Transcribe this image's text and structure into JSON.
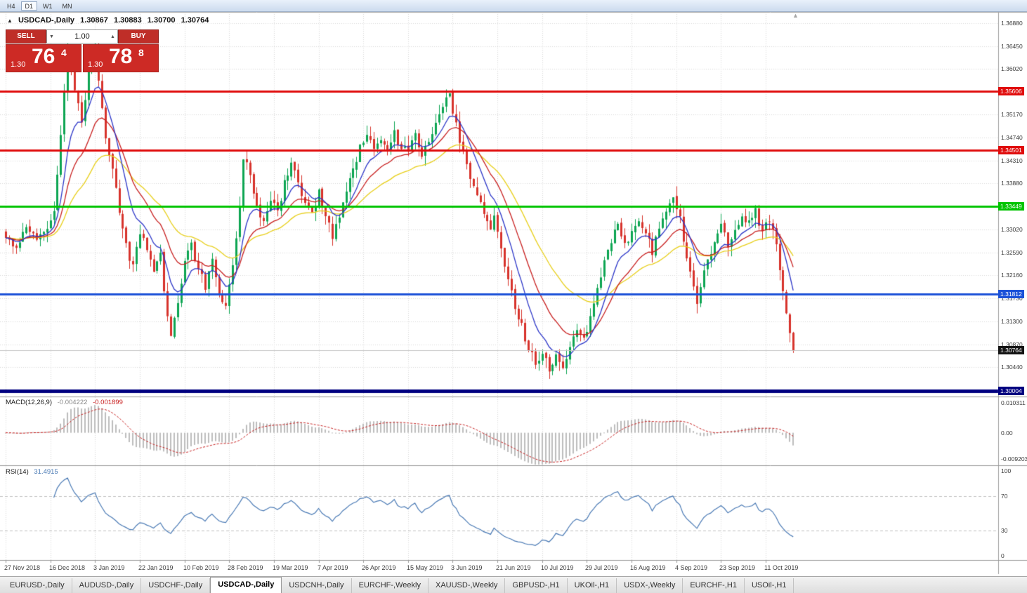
{
  "toolbar": {
    "timeframes": [
      {
        "label": "H4",
        "active": false
      },
      {
        "label": "D1",
        "active": true
      },
      {
        "label": "W1",
        "active": false
      },
      {
        "label": "MN",
        "active": false
      }
    ]
  },
  "symbol_header": {
    "arrow": "▲",
    "title": "USDCAD-,Daily",
    "open": "1.30867",
    "high": "1.30883",
    "low": "1.30700",
    "close": "1.30764"
  },
  "trade_panel": {
    "sell_label": "SELL",
    "buy_label": "BUY",
    "volume": "1.00",
    "volume_down_glyph": "▼",
    "volume_up_glyph": "▲",
    "sell_price": {
      "prefix": "1.30",
      "big": "76",
      "sup": "4"
    },
    "buy_price": {
      "prefix": "1.30",
      "big": "78",
      "sup": "8"
    },
    "panel_color": "#cd2a25"
  },
  "chart_markers": {
    "shift_glyph": "▲"
  },
  "price_axis": {
    "grid_labels": [
      {
        "text": "1.36880",
        "price": 1.3688
      },
      {
        "text": "1.36450",
        "price": 1.3645
      },
      {
        "text": "1.36020",
        "price": 1.3602
      },
      {
        "text": "1.35170",
        "price": 1.3517
      },
      {
        "text": "1.34740",
        "price": 1.3474
      },
      {
        "text": "1.34310",
        "price": 1.3431
      },
      {
        "text": "1.33880",
        "price": 1.3388
      },
      {
        "text": "1.33020",
        "price": 1.3302
      },
      {
        "text": "1.32590",
        "price": 1.3259
      },
      {
        "text": "1.32160",
        "price": 1.3216
      },
      {
        "text": "1.31730",
        "price": 1.3173
      },
      {
        "text": "1.31300",
        "price": 1.313
      },
      {
        "text": "1.30870",
        "price": 1.3087
      },
      {
        "text": "1.30440",
        "price": 1.3044
      }
    ],
    "grid_prices": [
      1.3688,
      1.3645,
      1.3602,
      1.3559,
      1.3517,
      1.3474,
      1.3431,
      1.3388,
      1.3345,
      1.3302,
      1.3259,
      1.3216,
      1.3173,
      1.313,
      1.3087,
      1.3044,
      1.3001
    ],
    "badges": [
      {
        "text": "1.35606",
        "price": 1.35606,
        "bg": "#e00c0c",
        "name": "resistance-line-badge"
      },
      {
        "text": "1.34501",
        "price": 1.34501,
        "bg": "#e00c0c",
        "name": "resistance-line-badge"
      },
      {
        "text": "1.33449",
        "price": 1.33449,
        "bg": "#00c400",
        "name": "support-line-badge"
      },
      {
        "text": "1.31812",
        "price": 1.31812,
        "bg": "#1b51d8",
        "name": "support-line-badge"
      },
      {
        "text": "1.30764",
        "price": 1.30764,
        "bg": "#141414",
        "name": "current-price-badge"
      },
      {
        "text": "1.30004",
        "price": 1.30004,
        "bg": "#000080",
        "name": "support-line-badge"
      }
    ]
  },
  "chart_data": {
    "type": "candlestick",
    "symbol": "USDCAD",
    "timeframe": "Daily",
    "price_range": {
      "min": 1.29895,
      "max": 1.3709
    },
    "candle_count": 230,
    "candles_per_tick": 13,
    "up_color": "#0da552",
    "down_color": "#d7332c",
    "price_anchors": [
      [
        0,
        1.329
      ],
      [
        3,
        1.3268
      ],
      [
        6,
        1.3302
      ],
      [
        9,
        1.328
      ],
      [
        12,
        1.3302
      ],
      [
        14,
        1.334
      ],
      [
        16,
        1.348
      ],
      [
        18,
        1.364
      ],
      [
        20,
        1.356
      ],
      [
        22,
        1.3505
      ],
      [
        24,
        1.359
      ],
      [
        26,
        1.365
      ],
      [
        27,
        1.3575
      ],
      [
        29,
        1.347
      ],
      [
        31,
        1.341
      ],
      [
        33,
        1.334
      ],
      [
        35,
        1.327
      ],
      [
        37,
        1.323
      ],
      [
        39,
        1.33
      ],
      [
        41,
        1.326
      ],
      [
        43,
        1.3225
      ],
      [
        45,
        1.3255
      ],
      [
        46,
        1.318
      ],
      [
        48,
        1.31
      ],
      [
        50,
        1.317
      ],
      [
        52,
        1.324
      ],
      [
        54,
        1.327
      ],
      [
        56,
        1.323
      ],
      [
        58,
        1.3195
      ],
      [
        60,
        1.324
      ],
      [
        62,
        1.3185
      ],
      [
        64,
        1.3155
      ],
      [
        66,
        1.324
      ],
      [
        68,
        1.334
      ],
      [
        69,
        1.344
      ],
      [
        71,
        1.34
      ],
      [
        73,
        1.3345
      ],
      [
        75,
        1.332
      ],
      [
        77,
        1.336
      ],
      [
        79,
        1.3335
      ],
      [
        81,
        1.339
      ],
      [
        83,
        1.342
      ],
      [
        85,
        1.339
      ],
      [
        87,
        1.335
      ],
      [
        89,
        1.333
      ],
      [
        91,
        1.337
      ],
      [
        93,
        1.333
      ],
      [
        95,
        1.3285
      ],
      [
        97,
        1.333
      ],
      [
        99,
        1.337
      ],
      [
        101,
        1.341
      ],
      [
        103,
        1.346
      ],
      [
        105,
        1.348
      ],
      [
        107,
        1.3445
      ],
      [
        109,
        1.347
      ],
      [
        111,
        1.345
      ],
      [
        113,
        1.348
      ],
      [
        115,
        1.3445
      ],
      [
        117,
        1.3455
      ],
      [
        119,
        1.348
      ],
      [
        121,
        1.3445
      ],
      [
        123,
        1.347
      ],
      [
        125,
        1.35
      ],
      [
        127,
        1.3535
      ],
      [
        129,
        1.3552
      ],
      [
        131,
        1.35
      ],
      [
        133,
        1.344
      ],
      [
        135,
        1.34
      ],
      [
        137,
        1.337
      ],
      [
        139,
        1.333
      ],
      [
        141,
        1.3295
      ],
      [
        142,
        1.332
      ],
      [
        144,
        1.326
      ],
      [
        146,
        1.321
      ],
      [
        148,
        1.316
      ],
      [
        150,
        1.312
      ],
      [
        152,
        1.308
      ],
      [
        154,
        1.3052
      ],
      [
        156,
        1.3072
      ],
      [
        158,
        1.3036
      ],
      [
        160,
        1.3062
      ],
      [
        162,
        1.3042
      ],
      [
        164,
        1.308
      ],
      [
        166,
        1.311
      ],
      [
        168,
        1.3092
      ],
      [
        170,
        1.314
      ],
      [
        172,
        1.319
      ],
      [
        174,
        1.324
      ],
      [
        176,
        1.328
      ],
      [
        178,
        1.331
      ],
      [
        180,
        1.3272
      ],
      [
        182,
        1.3292
      ],
      [
        184,
        1.3322
      ],
      [
        186,
        1.3292
      ],
      [
        188,
        1.3262
      ],
      [
        190,
        1.33
      ],
      [
        192,
        1.333
      ],
      [
        194,
        1.3365
      ],
      [
        196,
        1.332
      ],
      [
        198,
        1.3245
      ],
      [
        200,
        1.319
      ],
      [
        201,
        1.3168
      ],
      [
        203,
        1.322
      ],
      [
        205,
        1.3262
      ],
      [
        207,
        1.3292
      ],
      [
        208,
        1.3312
      ],
      [
        210,
        1.3272
      ],
      [
        212,
        1.33
      ],
      [
        214,
        1.333
      ],
      [
        216,
        1.3312
      ],
      [
        218,
        1.3336
      ],
      [
        220,
        1.3295
      ],
      [
        221,
        1.332
      ],
      [
        223,
        1.3302
      ],
      [
        224,
        1.3272
      ],
      [
        225,
        1.3232
      ],
      [
        226,
        1.3185
      ],
      [
        227,
        1.3142
      ],
      [
        228,
        1.3108
      ],
      [
        229,
        1.3076
      ]
    ],
    "moving_averages": [
      {
        "name": "slow-ma",
        "period": 36,
        "color": "#e8cf18"
      },
      {
        "name": "medium-ma",
        "period": 18,
        "color": "#c81e1e"
      },
      {
        "name": "fast-ma",
        "period": 9,
        "color": "#2b35c8"
      }
    ],
    "hlines": [
      {
        "price": 1.30764,
        "color": "#c4c4c4",
        "width": 1
      },
      {
        "price": 1.35606,
        "color": "#e00c0c",
        "width": 3
      },
      {
        "price": 1.34501,
        "color": "#e00c0c",
        "width": 3
      },
      {
        "price": 1.33449,
        "color": "#00c400",
        "width": 3
      },
      {
        "price": 1.31812,
        "color": "#1b51d8",
        "width": 3
      },
      {
        "price": 1.30004,
        "color": "#000080",
        "width": 5
      }
    ],
    "macd": {
      "label": "MACD(12,26,9)",
      "fast": 12,
      "slow": 26,
      "signal": 9,
      "main_value": "-0.004222",
      "signal_value": "-0.001899",
      "axis_max": "0.010311",
      "axis_zero": "0.00",
      "axis_min": "-0.0092030",
      "range": {
        "max": 0.010311,
        "min": -0.009203
      },
      "hist_color": "#bdbdbd",
      "signal_color": "#c81e1e"
    },
    "rsi": {
      "label": "RSI(14)",
      "period": 14,
      "value": "31.4915",
      "axis": [
        {
          "text": "100",
          "value": 100
        },
        {
          "text": "70",
          "value": 70
        },
        {
          "text": "30",
          "value": 30
        },
        {
          "text": "0",
          "value": 0
        }
      ],
      "levels": [
        70,
        30
      ],
      "line_color": "#4a7ab5",
      "level_color": "#bfbfbf"
    }
  },
  "date_axis": {
    "ticks": [
      "27 Nov 2018",
      "16 Dec 2018",
      "3 Jan 2019",
      "22 Jan 2019",
      "10 Feb 2019",
      "28 Feb 2019",
      "19 Mar 2019",
      "7 Apr 2019",
      "26 Apr 2019",
      "15 May 2019",
      "3 Jun 2019",
      "21 Jun 2019",
      "10 Jul 2019",
      "29 Jul 2019",
      "16 Aug 2019",
      "4 Sep 2019",
      "23 Sep 2019",
      "11 Oct 2019"
    ]
  },
  "tab_bar": {
    "tabs": [
      "EURUSD-,Daily",
      "AUDUSD-,Daily",
      "USDCHF-,Daily",
      "USDCAD-,Daily",
      "USDCNH-,Daily",
      "EURCHF-,Weekly",
      "XAUUSD-,Weekly",
      "GBPUSD-,H1",
      "UKOil-,H1",
      "USDX-,Weekly",
      "EURCHF-,H1",
      "USOil-,H1"
    ],
    "active_index": 3
  }
}
